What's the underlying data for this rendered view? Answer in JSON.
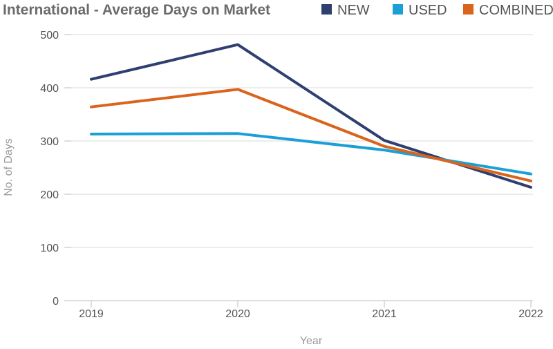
{
  "chart_data": {
    "type": "line",
    "title": "International - Average Days on Market",
    "xlabel": "Year",
    "ylabel": "No. of Days",
    "categories": [
      "2019",
      "2020",
      "2021",
      "2022"
    ],
    "ylim": [
      0,
      500
    ],
    "yticks": [
      0,
      100,
      200,
      300,
      400,
      500
    ],
    "grid": true,
    "legend_position": "top-right",
    "series": [
      {
        "name": "NEW",
        "color": "#2f3f70",
        "values": [
          416,
          481,
          301,
          213
        ]
      },
      {
        "name": "USED",
        "color": "#1aa0d6",
        "values": [
          313,
          314,
          283,
          238
        ]
      },
      {
        "name": "COMBINED",
        "color": "#d9641c",
        "values": [
          364,
          397,
          290,
          225
        ]
      }
    ]
  }
}
